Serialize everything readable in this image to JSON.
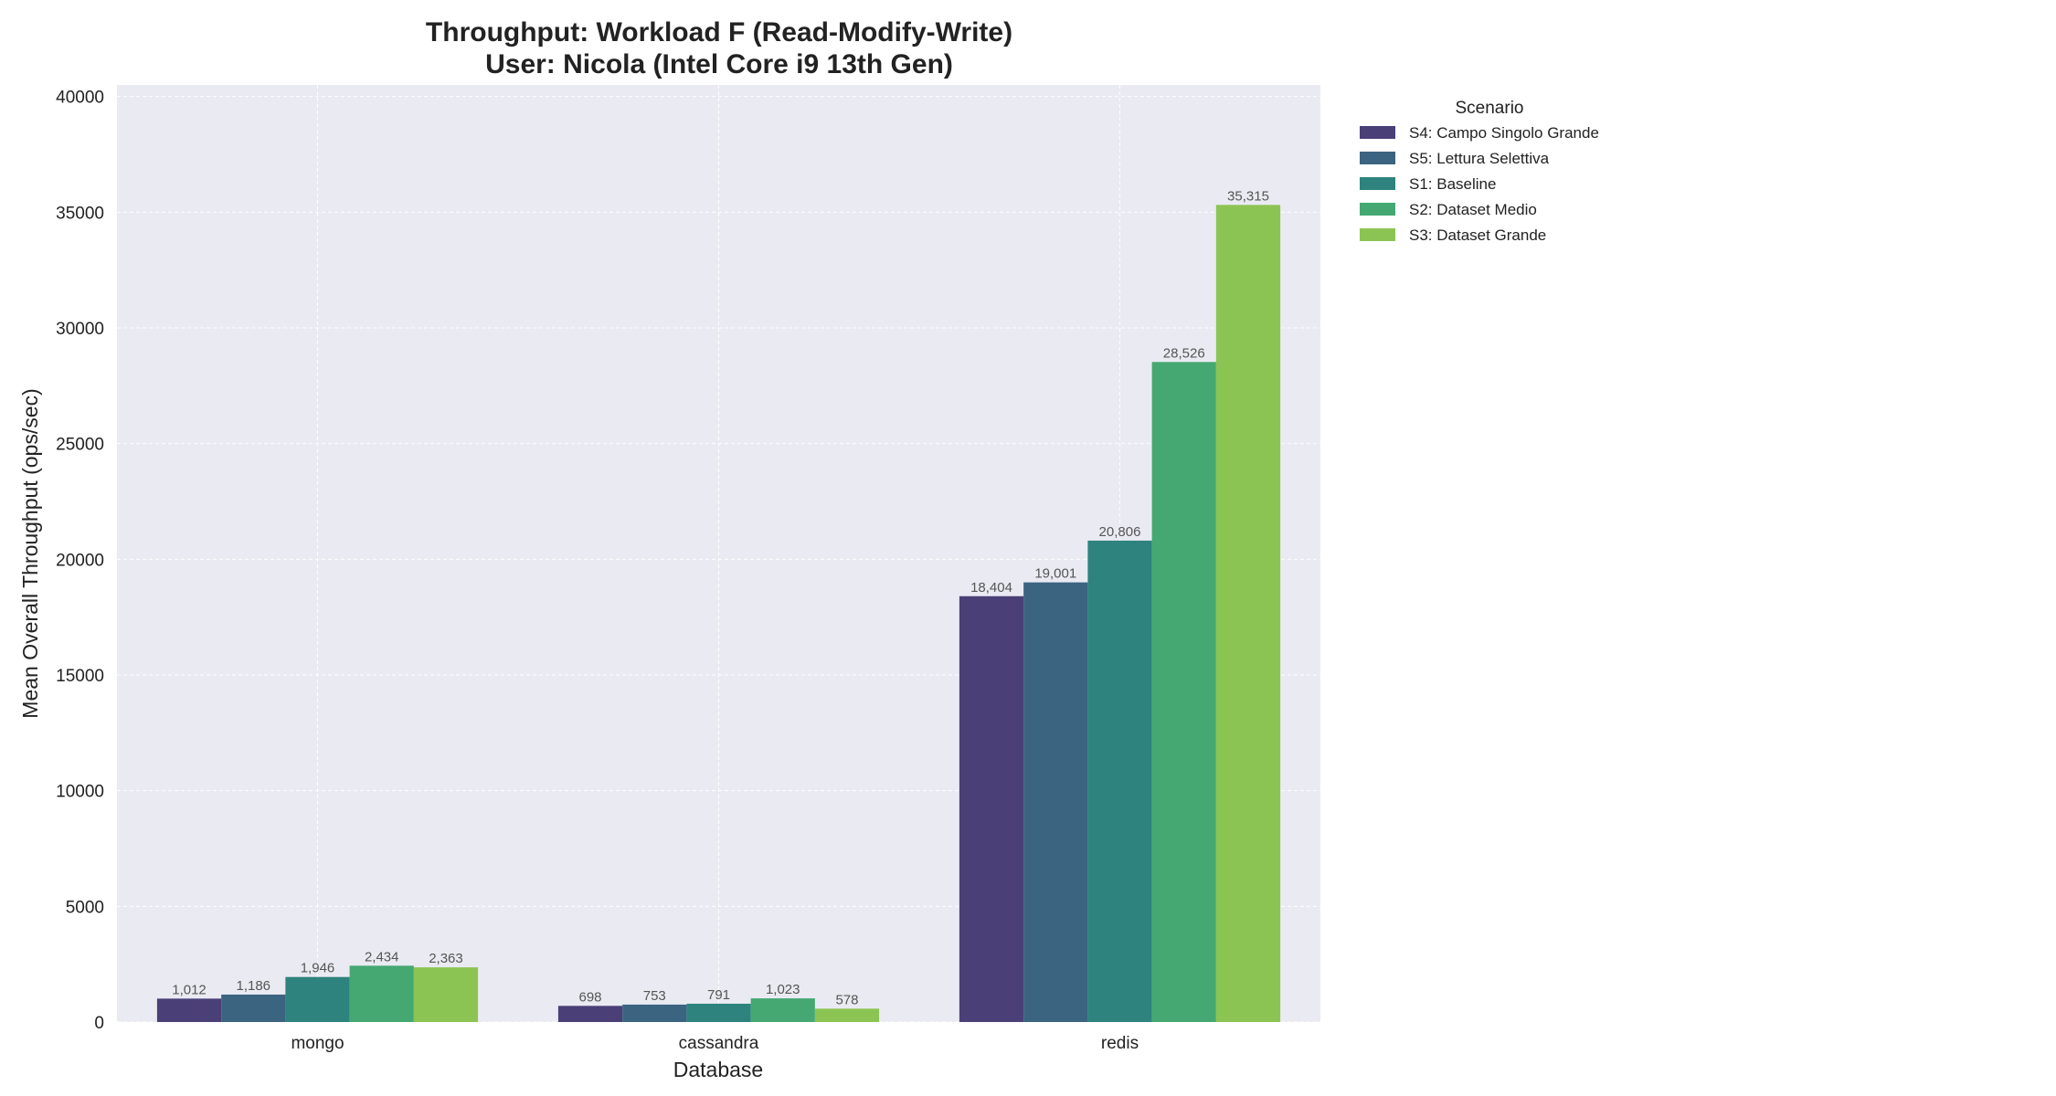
{
  "chart_data": {
    "type": "bar",
    "title_line1": "Throughput: Workload F (Read-Modify-Write)",
    "title_line2": "User: Nicola (Intel Core i9 13th Gen)",
    "xlabel": "Database",
    "ylabel": "Mean Overall Throughput (ops/sec)",
    "categories": [
      "mongo",
      "cassandra",
      "redis"
    ],
    "ylim": [
      0,
      40500
    ],
    "yticks": [
      0,
      5000,
      10000,
      15000,
      20000,
      25000,
      30000,
      35000,
      40000
    ],
    "grid": true,
    "legend_title": "Scenario",
    "legend_position": "outside-top-right",
    "series": [
      {
        "name": "S4: Campo Singolo Grande",
        "color": "#4a3f77",
        "values": [
          1012,
          698,
          18404
        ],
        "labels": [
          "1,012",
          "698",
          "18,404"
        ]
      },
      {
        "name": "S5: Lettura Selettiva",
        "color": "#3b6481",
        "values": [
          1186,
          753,
          19001
        ],
        "labels": [
          "1,186",
          "753",
          "19,001"
        ]
      },
      {
        "name": "S1: Baseline",
        "color": "#2e837e",
        "values": [
          1946,
          791,
          20806
        ],
        "labels": [
          "1,946",
          "791",
          "20,806"
        ]
      },
      {
        "name": "S2: Dataset Medio",
        "color": "#45a872",
        "values": [
          2434,
          1023,
          28526
        ],
        "labels": [
          "2,434",
          "1,023",
          "28,526"
        ]
      },
      {
        "name": "S3: Dataset Grande",
        "color": "#8cc453",
        "values": [
          2363,
          578,
          35315
        ],
        "labels": [
          "2,363",
          "578",
          "35,315"
        ]
      }
    ]
  }
}
